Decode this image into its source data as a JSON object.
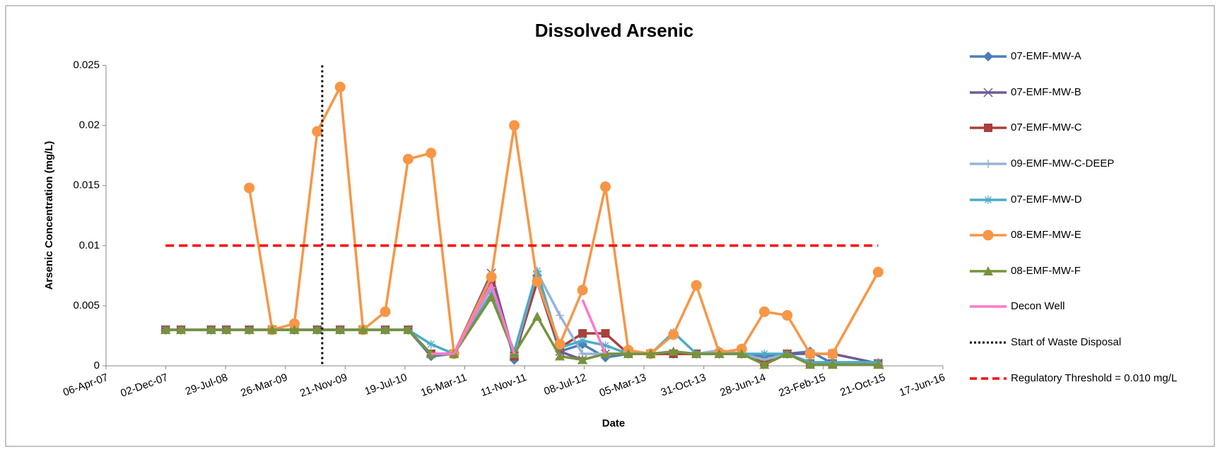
{
  "chart_data": {
    "type": "line",
    "title": "Dissolved Arsenic",
    "x_label": "Date",
    "y_label": "Arsenic Concentration (mg/L)",
    "xlim": [
      "2007-04-06",
      "2016-06-17"
    ],
    "xticks": [
      {
        "value": "2007-04-06",
        "label": "06-Apr-07"
      },
      {
        "value": "2007-12-02",
        "label": "02-Dec-07"
      },
      {
        "value": "2008-07-29",
        "label": "29-Jul-08"
      },
      {
        "value": "2009-03-26",
        "label": "26-Mar-09"
      },
      {
        "value": "2009-11-21",
        "label": "21-Nov-09"
      },
      {
        "value": "2010-07-19",
        "label": "19-Jul-10"
      },
      {
        "value": "2011-03-16",
        "label": "16-Mar-11"
      },
      {
        "value": "2011-11-11",
        "label": "11-Nov-11"
      },
      {
        "value": "2012-07-08",
        "label": "08-Jul-12"
      },
      {
        "value": "2013-03-05",
        "label": "05-Mar-13"
      },
      {
        "value": "2013-10-31",
        "label": "31-Oct-13"
      },
      {
        "value": "2014-06-28",
        "label": "28-Jun-14"
      },
      {
        "value": "2015-02-23",
        "label": "23-Feb-15"
      },
      {
        "value": "2015-10-21",
        "label": "21-Oct-15"
      },
      {
        "value": "2016-06-17",
        "label": "17-Jun-16"
      }
    ],
    "ylim": [
      0,
      0.025
    ],
    "yticks": [
      0,
      0.005,
      0.01,
      0.015,
      0.02,
      0.025
    ],
    "grid": false,
    "legend": "right",
    "x": [
      "2007-12-01",
      "2008-02-01",
      "2008-06-01",
      "2008-08-01",
      "2008-11-01",
      "2009-02-01",
      "2009-05-01",
      "2009-08-01",
      "2009-11-01",
      "2010-02-01",
      "2010-05-01",
      "2010-08-01",
      "2010-11-01",
      "2011-02-01",
      "2011-07-01",
      "2011-10-01",
      "2012-01-01",
      "2012-04-01",
      "2012-07-01",
      "2012-10-01",
      "2013-01-01",
      "2013-04-01",
      "2013-07-01",
      "2013-10-01",
      "2014-01-01",
      "2014-04-01",
      "2014-07-01",
      "2014-10-01",
      "2015-01-01",
      "2015-04-01",
      "2015-10-01"
    ],
    "series": [
      {
        "name": "07-EMF-MW-A",
        "color": "#4a7ebb",
        "marker": "diamond",
        "values": [
          0.003,
          0.003,
          0.003,
          0.003,
          0.003,
          0.003,
          0.003,
          0.003,
          0.003,
          0.003,
          0.003,
          0.003,
          0.0008,
          0.001,
          0.0075,
          0.0005,
          0.0075,
          0.0012,
          0.0018,
          0.0007,
          0.001,
          0.001,
          0.001,
          0.001,
          0.001,
          0.001,
          0.0008,
          0.001,
          0.0012,
          0.0002,
          0.0002
        ]
      },
      {
        "name": "07-EMF-MW-B",
        "color": "#6f5a96",
        "marker": "x",
        "values": [
          0.003,
          0.003,
          0.003,
          0.003,
          0.003,
          0.003,
          0.003,
          0.003,
          0.003,
          0.003,
          0.003,
          0.003,
          0.001,
          0.001,
          0.0077,
          0.0008,
          0.007,
          0.0012,
          0.0005,
          0.001,
          0.001,
          0.001,
          0.001,
          0.001,
          0.001,
          0.001,
          0.0005,
          0.001,
          0.001,
          0.001,
          0.0002
        ]
      },
      {
        "name": "07-EMF-MW-C",
        "color": "#a8403c",
        "marker": "square",
        "values": [
          0.003,
          0.003,
          0.003,
          0.003,
          0.003,
          0.003,
          0.003,
          0.003,
          0.003,
          0.003,
          0.003,
          0.003,
          0.001,
          0.001,
          0.007,
          0.0008,
          0.007,
          0.0015,
          0.0027,
          0.0027,
          0.001,
          0.001,
          0.001,
          0.001,
          0.001,
          0.001,
          0.0003,
          0.001,
          0.0002,
          0.0002,
          0.0002
        ]
      },
      {
        "name": "09-EMF-MW-C-DEEP",
        "color": "#98b3d6",
        "marker": "plus",
        "values": [
          null,
          null,
          null,
          null,
          null,
          null,
          null,
          null,
          0.003,
          0.003,
          0.003,
          0.003,
          0.001,
          0.001,
          0.0065,
          0.001,
          0.0078,
          0.0042,
          0.001,
          0.001,
          0.001,
          0.001,
          0.0012,
          0.001,
          0.0013,
          0.001,
          0.0005,
          0.001,
          0.0002,
          0.0002,
          0.0002
        ]
      },
      {
        "name": "07-EMF-MW-D",
        "color": "#4bacc6",
        "marker": "asterisk",
        "values": [
          0.003,
          0.003,
          0.003,
          0.003,
          0.003,
          0.003,
          0.003,
          0.003,
          0.003,
          0.003,
          0.003,
          0.003,
          0.0018,
          0.001,
          0.006,
          0.0012,
          0.0079,
          0.0015,
          0.0021,
          0.0017,
          0.001,
          0.001,
          0.0028,
          0.001,
          0.001,
          0.001,
          0.001,
          0.001,
          0.0003,
          0.0003,
          0.0003
        ]
      },
      {
        "name": "08-EMF-MW-E",
        "color": "#f79646",
        "marker": "circle",
        "values": [
          null,
          null,
          null,
          null,
          0.0148,
          0.003,
          0.0035,
          0.0195,
          0.0232,
          0.003,
          0.0045,
          0.0172,
          0.0177,
          0.001,
          0.0074,
          0.02,
          0.007,
          0.0018,
          0.0063,
          0.0149,
          0.0013,
          0.001,
          0.0026,
          0.0067,
          0.0011,
          0.0014,
          0.0045,
          0.0042,
          0.001,
          0.001,
          0.0078
        ]
      },
      {
        "name": "08-EMF-MW-F",
        "color": "#77933c",
        "marker": "triangle",
        "values": [
          0.003,
          0.003,
          0.003,
          0.003,
          0.003,
          0.003,
          0.003,
          0.003,
          0.003,
          0.003,
          0.003,
          0.003,
          0.001,
          0.001,
          0.0057,
          0.001,
          0.0041,
          0.0008,
          0.0005,
          0.001,
          0.001,
          0.001,
          0.0012,
          0.001,
          0.001,
          0.001,
          0.0001,
          0.001,
          0.0001,
          0.0001,
          0.0001
        ]
      },
      {
        "name": "Decon Well",
        "color": "#ff77cc",
        "marker": "none",
        "values": [
          null,
          null,
          null,
          null,
          null,
          null,
          null,
          null,
          null,
          null,
          null,
          null,
          0.001,
          0.001,
          0.0068,
          0.001,
          null,
          null,
          0.0055,
          0.001,
          null,
          null,
          null,
          null,
          null,
          null,
          null,
          null,
          null,
          null,
          null
        ]
      }
    ],
    "start_line": {
      "name": "Start of Waste Disposal",
      "date": "2009-08-21",
      "color": "#000000"
    },
    "threshold": {
      "name": "Regulatory Threshold = 0.010 mg/L",
      "value": 0.01,
      "x": [
        "2007-12-01",
        "2015-10-01"
      ],
      "color": "#ff0000"
    }
  }
}
